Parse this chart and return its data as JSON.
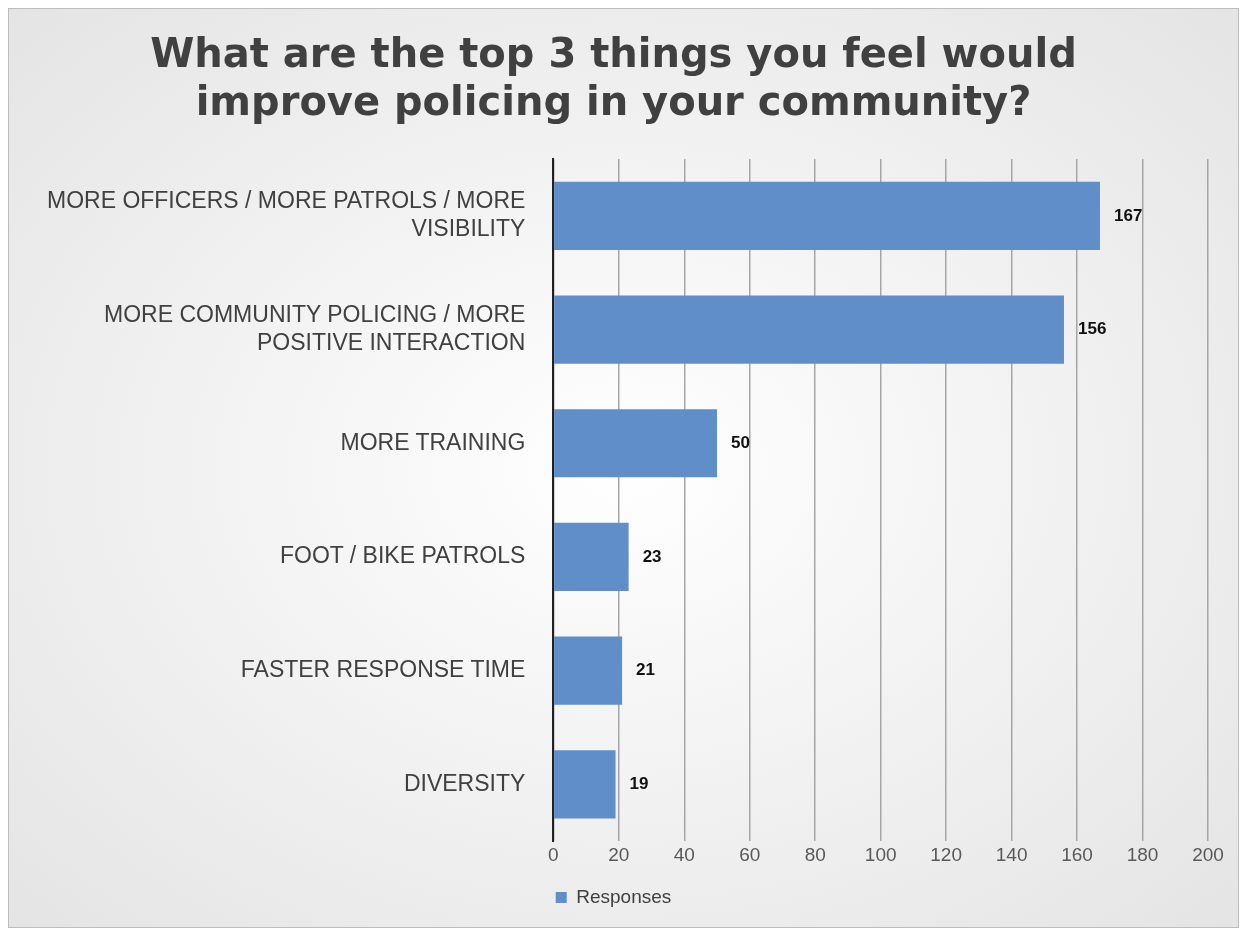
{
  "chart_data": {
    "type": "bar",
    "orientation": "horizontal",
    "title": "What are the top 3 things you feel would improve policing in your community?",
    "categories": [
      "MORE OFFICERS / MORE PATROLS / MORE VISIBILITY",
      "MORE COMMUNITY POLICING / MORE POSITIVE INTERACTION",
      "MORE TRAINING",
      "FOOT / BIKE PATROLS",
      "FASTER RESPONSE TIME",
      "DIVERSITY"
    ],
    "series": [
      {
        "name": "Responses",
        "color": "#5f8ec9",
        "values": [
          167,
          156,
          50,
          23,
          21,
          19
        ]
      }
    ],
    "xlim": [
      0,
      200
    ],
    "xticks": [
      0,
      20,
      40,
      60,
      80,
      100,
      120,
      140,
      160,
      180,
      200
    ],
    "grid": "x",
    "legend": "bottom",
    "data_labels": true
  }
}
